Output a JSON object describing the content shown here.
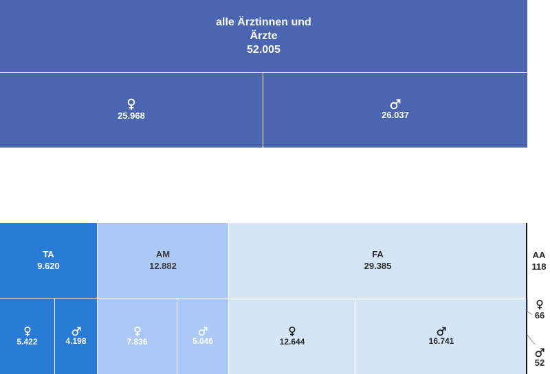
{
  "chart_data": {
    "type": "treemap",
    "top": {
      "label_line1": "alle Ärztinnen und",
      "label_line2": "Ärzte",
      "value": "52.005",
      "children": [
        {
          "gender": "female",
          "icon": "female-icon",
          "value": "25.968"
        },
        {
          "gender": "male",
          "icon": "male-icon",
          "value": "26.037"
        }
      ]
    },
    "groups": [
      {
        "label": "TA",
        "value": "9.620",
        "female": "5.422",
        "male": "4.198",
        "color": "#2a7bd5"
      },
      {
        "label": "AM",
        "value": "12.882",
        "female": "7.836",
        "male": "5.046",
        "color": "#abc9f4"
      },
      {
        "label": "FA",
        "value": "29.385",
        "female": "12.644",
        "male": "16.741",
        "color": "#d4e5f7"
      },
      {
        "label": "AA",
        "value": "118",
        "female": "66",
        "male": "52",
        "color": "#ffffff"
      }
    ],
    "colors": {
      "top": "#4a66b1"
    }
  }
}
